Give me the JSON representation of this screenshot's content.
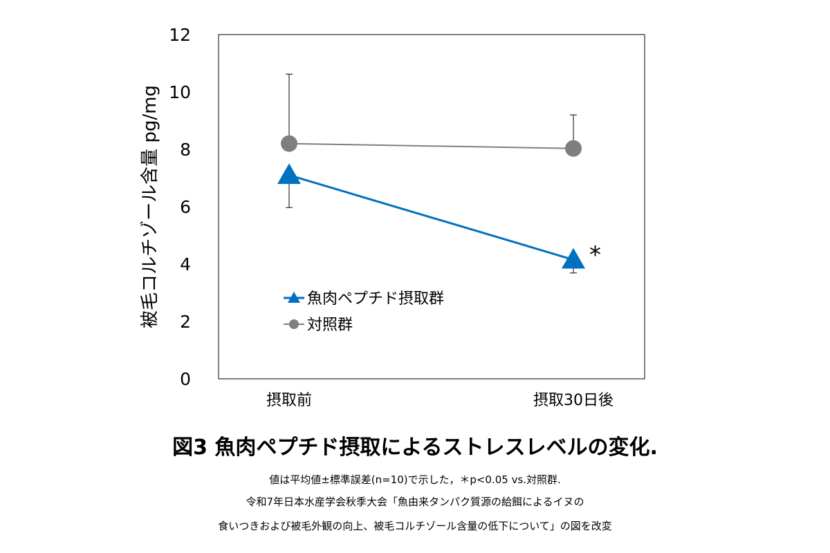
{
  "chart_data": {
    "type": "line",
    "ylabel": "被毛コルチゾール含量 pg/mg",
    "ylim": [
      0,
      12
    ],
    "yticks": [
      "0",
      "2",
      "4",
      "6",
      "8",
      "10",
      "12"
    ],
    "categories": [
      "摂取前",
      "摂取30日後"
    ],
    "grid": false,
    "legend_position": "lower-left inside plot",
    "series": [
      {
        "name": "魚肉ペプチド摂取群",
        "values": [
          7.1,
          4.15
        ],
        "error_upper": [
          7.1,
          4.15
        ],
        "error_lower": [
          5.97,
          3.69
        ],
        "color": "#0070C0",
        "marker": "triangle"
      },
      {
        "name": "対照群",
        "values": [
          8.2,
          8.03
        ],
        "error_upper": [
          10.62,
          9.2
        ],
        "error_lower": [
          8.2,
          8.03
        ],
        "color": "#7F7F7F",
        "marker": "circle"
      }
    ],
    "annotations": [
      {
        "text": "*",
        "category": "摂取30日後"
      }
    ]
  },
  "figure": {
    "title": "図3 魚肉ペプチド摂取によるストレスレベルの変化.",
    "note1": "値は平均値±標準誤差(n=10)で示した，＊p<0.05 vs.対照群.",
    "note2": "令和7年日本水産学会秋季大会「魚由来タンパク質源の給餌によるイヌの",
    "note3": "食いつきおよび被毛外観の向上、被毛コルチゾール含量の低下について」の図を改変"
  }
}
